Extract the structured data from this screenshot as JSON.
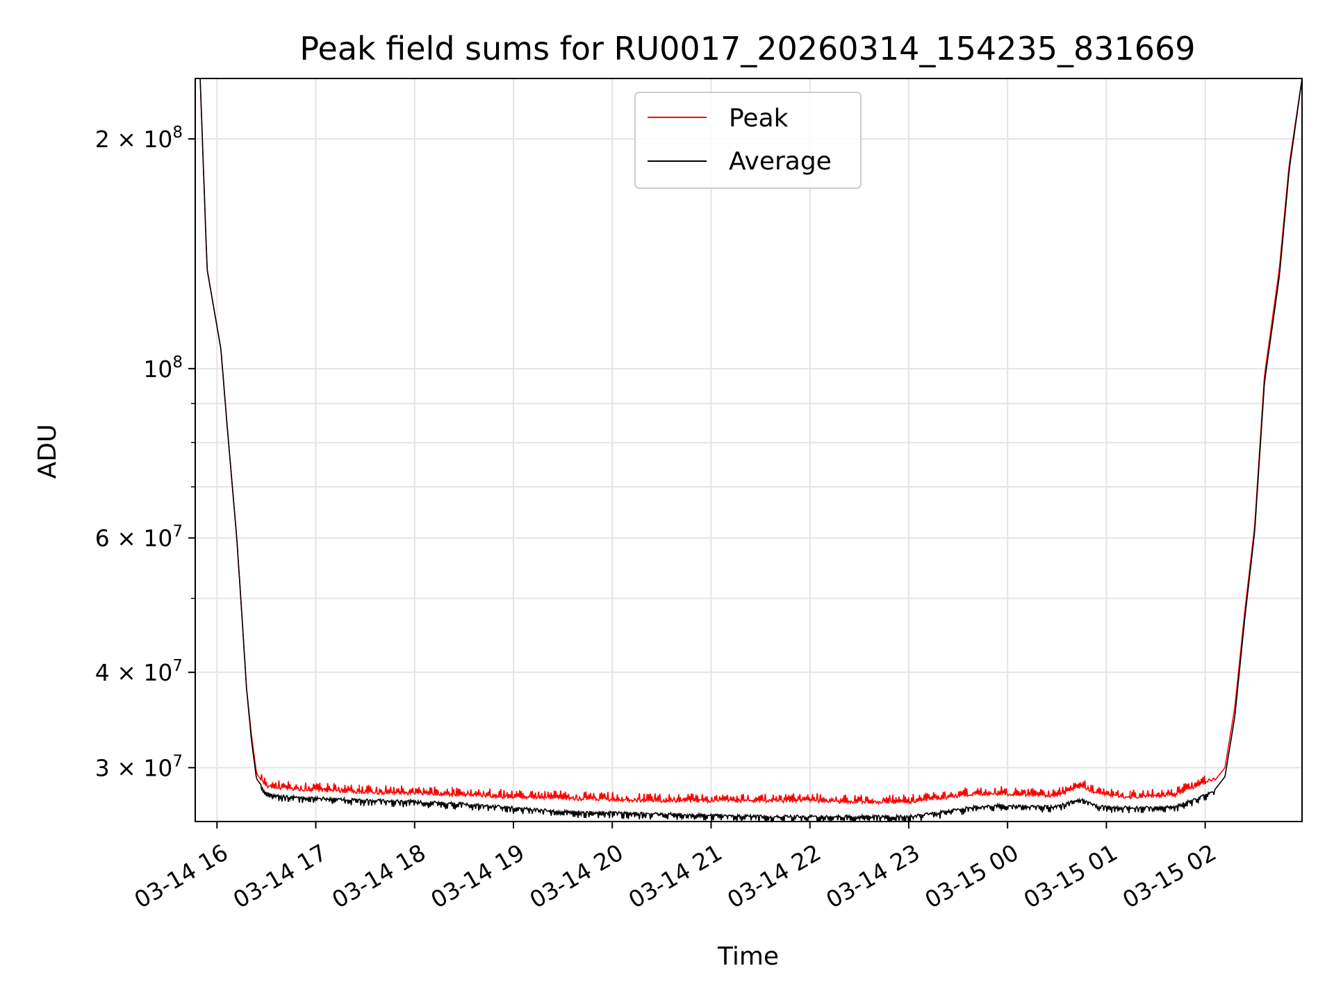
{
  "chart_data": {
    "type": "line",
    "title": "Peak field sums for RU0017_20260314_154235_831669",
    "xlabel": "Time",
    "ylabel": "ADU",
    "yscale": "log",
    "ylim": [
      25500000,
      240000000
    ],
    "xlim_hours": [
      15.78,
      26.98
    ],
    "grid": true,
    "legend_position": "top-center",
    "x_ticks": [
      {
        "hour": 16,
        "label": "03-14 16"
      },
      {
        "hour": 17,
        "label": "03-14 17"
      },
      {
        "hour": 18,
        "label": "03-14 18"
      },
      {
        "hour": 19,
        "label": "03-14 19"
      },
      {
        "hour": 20,
        "label": "03-14 20"
      },
      {
        "hour": 21,
        "label": "03-14 21"
      },
      {
        "hour": 22,
        "label": "03-14 22"
      },
      {
        "hour": 23,
        "label": "03-14 23"
      },
      {
        "hour": 24,
        "label": "03-15 00"
      },
      {
        "hour": 25,
        "label": "03-15 01"
      },
      {
        "hour": 26,
        "label": "03-15 02"
      }
    ],
    "y_ticks": [
      {
        "value": 200000000,
        "mant": "2",
        "exp": "8"
      },
      {
        "value": 100000000,
        "mant": "",
        "exp": "8"
      },
      {
        "value": 60000000,
        "mant": "6",
        "exp": "7"
      },
      {
        "value": 40000000,
        "mant": "4",
        "exp": "7"
      },
      {
        "value": 30000000,
        "mant": "3",
        "exp": "7"
      }
    ],
    "y_minor_ticks": [
      50000000,
      70000000,
      80000000,
      90000000
    ],
    "series": [
      {
        "name": "Peak",
        "color": "#ff0000",
        "x_hours": [
          15.83,
          15.9,
          16.04,
          16.1,
          16.2,
          16.25,
          16.3,
          16.35,
          16.4,
          16.5,
          16.7,
          17.0,
          17.5,
          18.0,
          18.5,
          19.0,
          19.5,
          20.0,
          20.5,
          21.0,
          21.5,
          22.0,
          22.5,
          23.0,
          23.3,
          23.6,
          23.9,
          24.2,
          24.5,
          24.75,
          24.9,
          25.2,
          25.5,
          25.7,
          25.9,
          26.1,
          26.2,
          26.3,
          26.4,
          26.5,
          26.6,
          26.75,
          26.85,
          26.98
        ],
        "values": [
          240000000,
          135000000,
          106000000,
          85000000,
          60000000,
          48000000,
          38000000,
          33000000,
          29500000,
          28200000,
          28000000,
          27900000,
          27700000,
          27600000,
          27500000,
          27300000,
          27200000,
          27100000,
          27000000,
          27000000,
          27000000,
          27000000,
          26900000,
          26900000,
          27200000,
          27500000,
          27600000,
          27500000,
          27400000,
          28200000,
          27600000,
          27300000,
          27400000,
          27500000,
          28200000,
          28900000,
          30000000,
          36000000,
          48000000,
          62000000,
          98000000,
          135000000,
          185000000,
          240000000
        ]
      },
      {
        "name": "Average",
        "color": "#000000",
        "x_hours": [
          15.83,
          15.9,
          16.04,
          16.1,
          16.2,
          16.25,
          16.3,
          16.35,
          16.4,
          16.5,
          16.7,
          17.0,
          17.5,
          18.0,
          18.5,
          19.0,
          19.5,
          20.0,
          20.5,
          21.0,
          21.5,
          22.0,
          22.5,
          23.0,
          23.3,
          23.6,
          23.9,
          24.2,
          24.5,
          24.75,
          24.9,
          25.2,
          25.5,
          25.7,
          25.9,
          26.1,
          26.2,
          26.3,
          26.4,
          26.5,
          26.6,
          26.75,
          26.85,
          26.98
        ],
        "values": [
          240000000,
          135000000,
          106000000,
          85000000,
          60000000,
          48000000,
          38000000,
          32500000,
          29000000,
          27900000,
          27600000,
          27500000,
          27300000,
          27200000,
          27000000,
          26700000,
          26400000,
          26300000,
          26200000,
          26100000,
          26000000,
          26000000,
          26000000,
          26000000,
          26300000,
          26700000,
          26900000,
          26800000,
          26800000,
          27400000,
          26800000,
          26700000,
          26700000,
          26800000,
          27400000,
          28100000,
          29200000,
          35000000,
          47000000,
          61000000,
          96000000,
          132000000,
          182000000,
          240000000
        ]
      }
    ],
    "noise": {
      "peak_band": 800000,
      "avg_band": 600000
    },
    "spikes": [
      {
        "hour": 17.12,
        "value": 28600000
      },
      {
        "hour": 17.44,
        "value": 28500000
      },
      {
        "hour": 18.38,
        "value": 28300000
      },
      {
        "hour": 25.24,
        "value": 28000000
      }
    ]
  }
}
